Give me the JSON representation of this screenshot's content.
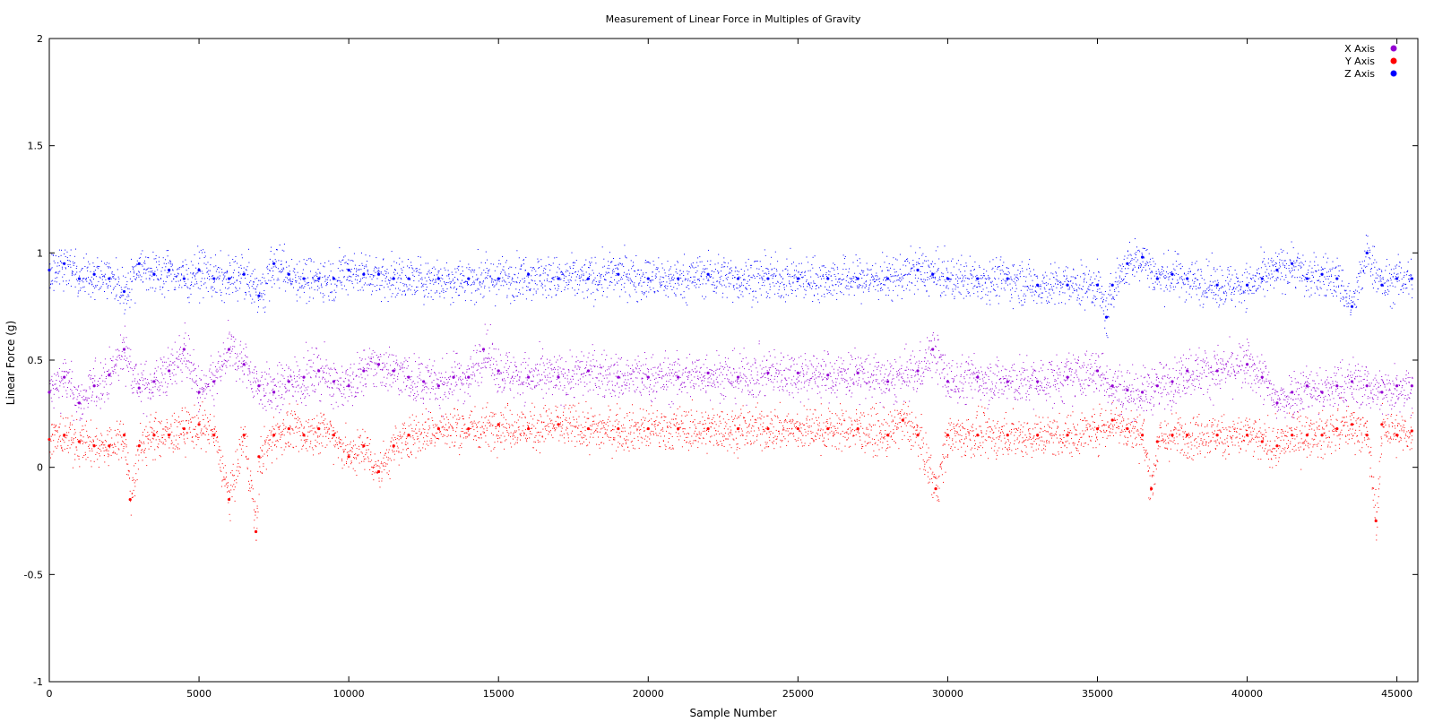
{
  "chart_data": {
    "type": "scatter",
    "title": "Measurement of Linear Force in Multiples of Gravity",
    "xlabel": "Sample Number",
    "ylabel": "Linear Force (g)",
    "xlim": [
      0,
      45700
    ],
    "ylim": [
      -1,
      2
    ],
    "x_ticks": [
      0,
      5000,
      10000,
      15000,
      20000,
      25000,
      30000,
      35000,
      40000,
      45000
    ],
    "y_ticks": [
      -1,
      -0.5,
      0,
      0.5,
      1,
      1.5,
      2
    ],
    "x_tick_labels": [
      "0",
      "5000",
      "10000",
      "15000",
      "20000",
      "25000",
      "30000",
      "35000",
      "40000",
      "45000"
    ],
    "y_tick_labels": [
      "-1",
      "-0.5",
      "0",
      "0.5",
      "1",
      "1.5",
      "2"
    ],
    "grid": false,
    "legend_position": "top-right",
    "series": [
      {
        "name": "X Axis",
        "color": "#9400d3",
        "x": [
          0,
          500,
          1000,
          1500,
          2000,
          2500,
          3000,
          3500,
          4000,
          4500,
          5000,
          5500,
          6000,
          6500,
          7000,
          7500,
          8000,
          8500,
          9000,
          9500,
          10000,
          10500,
          11000,
          11500,
          12000,
          12500,
          13000,
          13500,
          14000,
          14500,
          15000,
          16000,
          17000,
          18000,
          19000,
          20000,
          21000,
          22000,
          23000,
          24000,
          25000,
          26000,
          27000,
          28000,
          29000,
          29500,
          30000,
          31000,
          32000,
          33000,
          34000,
          35000,
          35500,
          36000,
          36500,
          37000,
          37500,
          38000,
          39000,
          40000,
          40500,
          41000,
          41500,
          42000,
          42500,
          43000,
          43500,
          44000,
          44500,
          45000,
          45500
        ],
        "y": [
          0.35,
          0.42,
          0.3,
          0.38,
          0.43,
          0.55,
          0.37,
          0.4,
          0.45,
          0.55,
          0.35,
          0.4,
          0.55,
          0.48,
          0.38,
          0.35,
          0.4,
          0.42,
          0.45,
          0.4,
          0.38,
          0.45,
          0.48,
          0.45,
          0.42,
          0.4,
          0.38,
          0.42,
          0.42,
          0.55,
          0.45,
          0.42,
          0.42,
          0.45,
          0.42,
          0.42,
          0.42,
          0.44,
          0.42,
          0.44,
          0.44,
          0.43,
          0.44,
          0.4,
          0.45,
          0.55,
          0.4,
          0.42,
          0.4,
          0.4,
          0.42,
          0.45,
          0.38,
          0.36,
          0.35,
          0.38,
          0.4,
          0.45,
          0.45,
          0.48,
          0.42,
          0.3,
          0.35,
          0.38,
          0.35,
          0.38,
          0.4,
          0.38,
          0.35,
          0.38,
          0.38
        ]
      },
      {
        "name": "Y Axis",
        "color": "#ff0000",
        "x": [
          0,
          500,
          1000,
          1500,
          2000,
          2500,
          2700,
          3000,
          3500,
          4000,
          4500,
          5000,
          5500,
          6000,
          6500,
          6900,
          7000,
          7500,
          8000,
          8500,
          9000,
          9500,
          10000,
          10500,
          11000,
          11500,
          12000,
          13000,
          14000,
          15000,
          16000,
          17000,
          18000,
          19000,
          20000,
          21000,
          22000,
          23000,
          24000,
          25000,
          26000,
          27000,
          28000,
          28500,
          29000,
          29600,
          30000,
          31000,
          32000,
          33000,
          34000,
          35000,
          35500,
          36000,
          36500,
          36800,
          37000,
          37500,
          38000,
          39000,
          40000,
          40500,
          41000,
          41500,
          42000,
          42500,
          43000,
          43500,
          44000,
          44300,
          44500,
          45000,
          45500
        ],
        "y": [
          0.13,
          0.15,
          0.12,
          0.1,
          0.1,
          0.15,
          -0.15,
          0.1,
          0.15,
          0.15,
          0.18,
          0.2,
          0.15,
          -0.15,
          0.15,
          -0.3,
          0.05,
          0.15,
          0.18,
          0.15,
          0.18,
          0.15,
          0.05,
          0.1,
          -0.02,
          0.1,
          0.15,
          0.18,
          0.18,
          0.2,
          0.18,
          0.2,
          0.18,
          0.18,
          0.18,
          0.18,
          0.18,
          0.18,
          0.18,
          0.18,
          0.18,
          0.18,
          0.15,
          0.22,
          0.15,
          -0.1,
          0.15,
          0.15,
          0.15,
          0.15,
          0.15,
          0.18,
          0.22,
          0.18,
          0.15,
          -0.1,
          0.12,
          0.15,
          0.15,
          0.15,
          0.15,
          0.12,
          0.1,
          0.15,
          0.15,
          0.15,
          0.18,
          0.2,
          0.15,
          -0.25,
          0.2,
          0.15,
          0.17
        ]
      },
      {
        "name": "Z Axis",
        "color": "#0000ff",
        "x": [
          0,
          500,
          1000,
          1500,
          2000,
          2500,
          3000,
          3500,
          4000,
          4500,
          5000,
          5500,
          6000,
          6500,
          7000,
          7500,
          8000,
          8500,
          9000,
          9500,
          10000,
          10500,
          11000,
          11500,
          12000,
          13000,
          14000,
          15000,
          16000,
          17000,
          18000,
          19000,
          20000,
          21000,
          22000,
          23000,
          24000,
          25000,
          26000,
          27000,
          28000,
          29000,
          29500,
          30000,
          31000,
          32000,
          33000,
          34000,
          35000,
          35300,
          35500,
          36000,
          36500,
          37000,
          37500,
          38000,
          39000,
          40000,
          40500,
          41000,
          41500,
          42000,
          42500,
          43000,
          43500,
          44000,
          44500,
          45000,
          45500
        ],
        "y": [
          0.92,
          0.95,
          0.88,
          0.9,
          0.88,
          0.82,
          0.95,
          0.9,
          0.92,
          0.88,
          0.92,
          0.88,
          0.88,
          0.9,
          0.8,
          0.95,
          0.9,
          0.88,
          0.88,
          0.88,
          0.92,
          0.9,
          0.9,
          0.88,
          0.88,
          0.88,
          0.88,
          0.88,
          0.9,
          0.88,
          0.88,
          0.9,
          0.88,
          0.88,
          0.9,
          0.88,
          0.88,
          0.88,
          0.88,
          0.88,
          0.88,
          0.92,
          0.9,
          0.88,
          0.88,
          0.88,
          0.85,
          0.85,
          0.85,
          0.7,
          0.85,
          0.95,
          0.98,
          0.88,
          0.9,
          0.88,
          0.85,
          0.85,
          0.88,
          0.92,
          0.95,
          0.88,
          0.9,
          0.88,
          0.75,
          1.0,
          0.85,
          0.88,
          0.88
        ]
      }
    ]
  }
}
